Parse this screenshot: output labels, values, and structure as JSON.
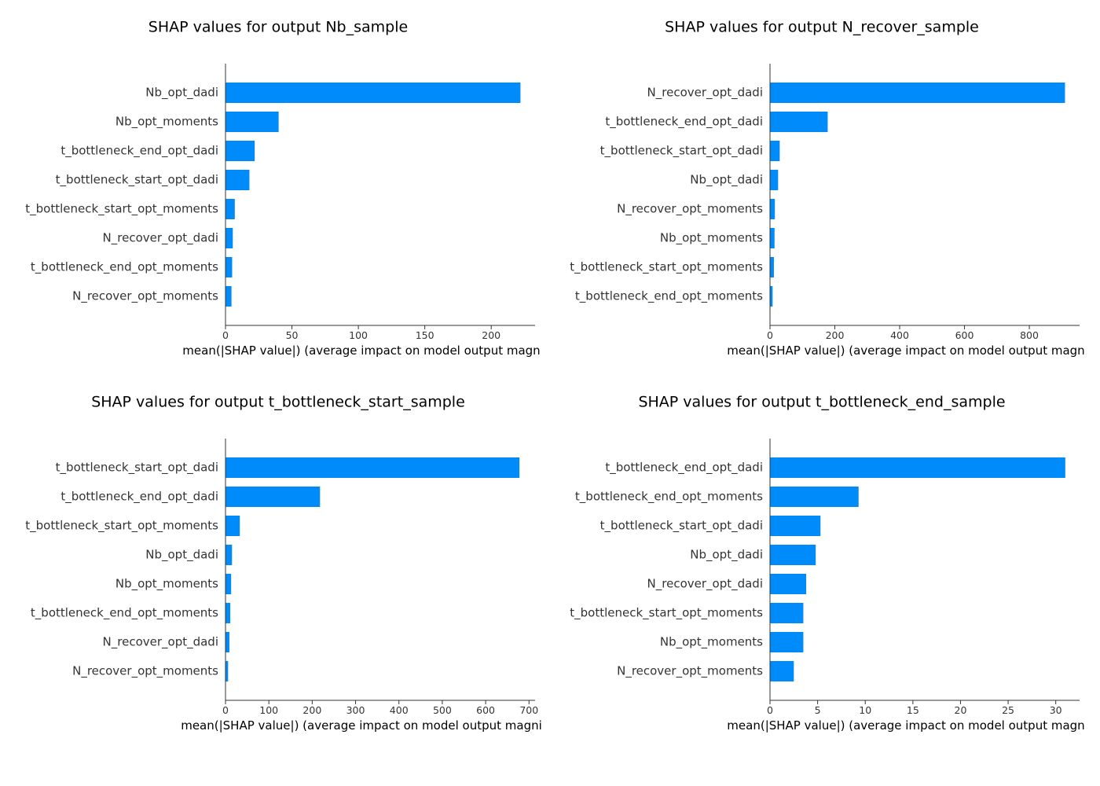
{
  "chart_data": [
    {
      "type": "bar",
      "orientation": "horizontal",
      "title": "SHAP values for output Nb_sample",
      "xlabel": "mean(|SHAP value|) (average impact on model output magn",
      "categories": [
        "Nb_opt_dadi",
        "Nb_opt_moments",
        "t_bottleneck_end_opt_dadi",
        "t_bottleneck_start_opt_dadi",
        "t_bottleneck_start_opt_moments",
        "N_recover_opt_dadi",
        "t_bottleneck_end_opt_moments",
        "N_recover_opt_moments"
      ],
      "values": [
        222,
        40,
        22,
        18,
        7,
        5.5,
        5,
        4.5
      ],
      "xlim": [
        0,
        233
      ],
      "xticks": [
        0,
        50,
        100,
        150,
        200
      ],
      "bar_color": "#008bfb",
      "grid": false
    },
    {
      "type": "bar",
      "orientation": "horizontal",
      "title": "SHAP values for output N_recover_sample",
      "xlabel": "mean(|SHAP value|) (average impact on model output magn",
      "categories": [
        "N_recover_opt_dadi",
        "t_bottleneck_end_opt_dadi",
        "t_bottleneck_start_opt_dadi",
        "Nb_opt_dadi",
        "N_recover_opt_moments",
        "Nb_opt_moments",
        "t_bottleneck_start_opt_moments",
        "t_bottleneck_end_opt_moments"
      ],
      "values": [
        910,
        178,
        30,
        25,
        15,
        14,
        12,
        8
      ],
      "xlim": [
        0,
        955
      ],
      "xticks": [
        0,
        200,
        400,
        600,
        800
      ],
      "bar_color": "#008bfb",
      "grid": false
    },
    {
      "type": "bar",
      "orientation": "horizontal",
      "title": "SHAP values for output t_bottleneck_start_sample",
      "xlabel": "mean(|SHAP value|) (average impact on model output magni",
      "categories": [
        "t_bottleneck_start_opt_dadi",
        "t_bottleneck_end_opt_dadi",
        "t_bottleneck_start_opt_moments",
        "Nb_opt_dadi",
        "Nb_opt_moments",
        "t_bottleneck_end_opt_moments",
        "N_recover_opt_dadi",
        "N_recover_opt_moments"
      ],
      "values": [
        678,
        218,
        33,
        15,
        13,
        11,
        9,
        6
      ],
      "xlim": [
        0,
        714
      ],
      "xticks": [
        0,
        100,
        200,
        300,
        400,
        500,
        600,
        700
      ],
      "bar_color": "#008bfb",
      "grid": false
    },
    {
      "type": "bar",
      "orientation": "horizontal",
      "title": "SHAP values for output t_bottleneck_end_sample",
      "xlabel": "mean(|SHAP value|) (average impact on model output magn",
      "categories": [
        "t_bottleneck_end_opt_dadi",
        "t_bottleneck_end_opt_moments",
        "t_bottleneck_start_opt_dadi",
        "Nb_opt_dadi",
        "N_recover_opt_dadi",
        "t_bottleneck_start_opt_moments",
        "Nb_opt_moments",
        "N_recover_opt_moments"
      ],
      "values": [
        31,
        9.3,
        5.3,
        4.8,
        3.8,
        3.5,
        3.5,
        2.5
      ],
      "xlim": [
        0,
        32.5
      ],
      "xticks": [
        0,
        5,
        10,
        15,
        20,
        25,
        30
      ],
      "bar_color": "#008bfb",
      "grid": false
    }
  ]
}
